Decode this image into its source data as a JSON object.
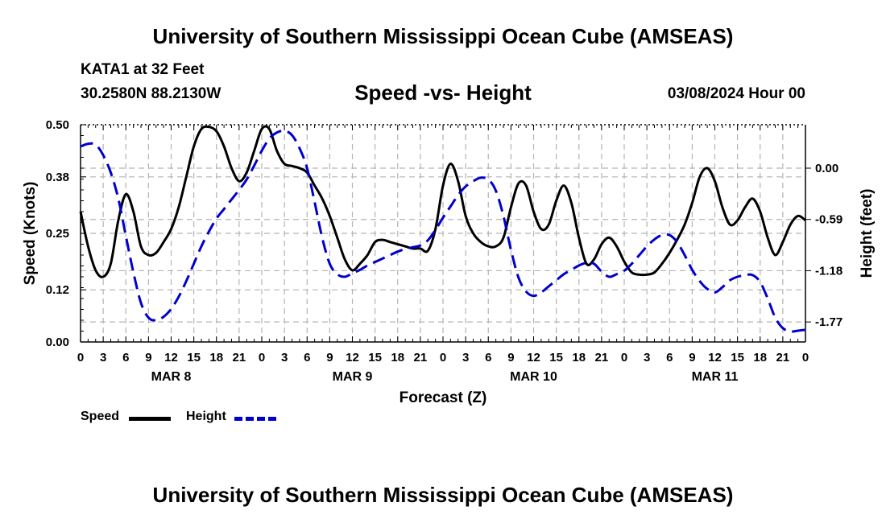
{
  "header": {
    "main_title": "University of Southern Mississippi Ocean Cube (AMSEAS)",
    "station": "KATA1 at 32 Feet",
    "coords": "30.2580N  88.2130W",
    "subtitle": "Speed -vs- Height",
    "datetime": "03/08/2024 Hour 00"
  },
  "footer": {
    "title": "University of Southern Mississippi Ocean Cube (AMSEAS)"
  },
  "legend": {
    "speed_label": "Speed",
    "height_label": "Height"
  },
  "colors": {
    "speed": "#000000",
    "height": "#0000cc",
    "grid": "#b4b4b4"
  },
  "chart_data": {
    "type": "line",
    "title": "Speed -vs- Height",
    "xlabel": "Forecast (Z)",
    "ylabel": "Speed (Knots)",
    "y2label": "Height (feet)",
    "xlim": [
      0,
      96
    ],
    "ylim": [
      0,
      0.5
    ],
    "y2lim": [
      -2.0,
      0.5
    ],
    "x_tick_step": 3,
    "x_tick_labels": [
      "0",
      "3",
      "6",
      "9",
      "12",
      "15",
      "18",
      "21",
      "0",
      "3",
      "6",
      "9",
      "12",
      "15",
      "18",
      "21",
      "0",
      "3",
      "6",
      "9",
      "12",
      "15",
      "18",
      "21",
      "0",
      "3",
      "6",
      "9",
      "12",
      "15",
      "18",
      "21",
      "0"
    ],
    "day_labels": [
      {
        "label": "MAR 8",
        "x": 12
      },
      {
        "label": "MAR 9",
        "x": 36
      },
      {
        "label": "MAR 10",
        "x": 60
      },
      {
        "label": "MAR 11",
        "x": 84
      }
    ],
    "y_ticks": [
      0.0,
      0.12,
      0.25,
      0.38,
      0.5
    ],
    "y_tick_labels": [
      "0.00",
      "0.12",
      "0.25",
      "0.38",
      "0.50"
    ],
    "y2_ticks": [
      0.0,
      -0.59,
      -1.18,
      -1.77
    ],
    "y2_tick_labels": [
      "0.00",
      "-0.59",
      "-1.18",
      "-1.77"
    ],
    "grid": true,
    "series": [
      {
        "name": "Speed",
        "axis": "left",
        "style": "solid",
        "x": [
          0,
          1,
          2,
          3,
          4,
          5,
          6,
          7,
          8,
          9,
          10,
          11,
          12,
          13,
          14,
          15,
          16,
          17,
          18,
          19,
          20,
          21,
          22,
          23,
          24,
          25,
          26,
          27,
          28,
          29,
          30,
          31,
          32,
          33,
          34,
          35,
          36,
          37,
          38,
          39,
          40,
          41,
          42,
          43,
          44,
          45,
          46,
          47,
          48,
          49,
          50,
          51,
          52,
          53,
          54,
          55,
          56,
          57,
          58,
          59,
          60,
          61,
          62,
          63,
          64,
          65,
          66,
          67,
          68,
          69,
          70,
          71,
          72,
          73,
          74,
          75,
          76,
          77,
          78,
          79,
          80,
          81,
          82,
          83,
          84,
          85,
          86,
          87,
          88,
          89,
          90,
          91,
          92,
          93,
          94,
          95,
          96
        ],
        "values": [
          0.3,
          0.22,
          0.165,
          0.15,
          0.18,
          0.28,
          0.34,
          0.3,
          0.22,
          0.2,
          0.205,
          0.23,
          0.26,
          0.31,
          0.38,
          0.45,
          0.49,
          0.495,
          0.485,
          0.45,
          0.4,
          0.37,
          0.39,
          0.44,
          0.49,
          0.49,
          0.44,
          0.41,
          0.405,
          0.4,
          0.39,
          0.36,
          0.33,
          0.29,
          0.24,
          0.19,
          0.165,
          0.18,
          0.2,
          0.23,
          0.235,
          0.23,
          0.225,
          0.22,
          0.215,
          0.215,
          0.21,
          0.26,
          0.36,
          0.41,
          0.37,
          0.29,
          0.25,
          0.23,
          0.22,
          0.22,
          0.24,
          0.31,
          0.365,
          0.36,
          0.3,
          0.26,
          0.27,
          0.325,
          0.36,
          0.32,
          0.24,
          0.18,
          0.19,
          0.225,
          0.24,
          0.22,
          0.185,
          0.16,
          0.155,
          0.155,
          0.16,
          0.18,
          0.205,
          0.235,
          0.27,
          0.32,
          0.38,
          0.4,
          0.37,
          0.31,
          0.27,
          0.28,
          0.31,
          0.33,
          0.3,
          0.24,
          0.2,
          0.23,
          0.27,
          0.29,
          0.28
        ]
      },
      {
        "name": "Height",
        "axis": "right",
        "style": "dashed",
        "x": [
          0,
          1,
          2,
          3,
          4,
          5,
          6,
          7,
          8,
          9,
          10,
          11,
          12,
          13,
          14,
          15,
          16,
          17,
          18,
          19,
          20,
          21,
          22,
          23,
          24,
          25,
          26,
          27,
          28,
          29,
          30,
          31,
          32,
          33,
          34,
          35,
          36,
          37,
          38,
          39,
          40,
          41,
          42,
          43,
          44,
          45,
          46,
          47,
          48,
          49,
          50,
          51,
          52,
          53,
          54,
          55,
          56,
          57,
          58,
          59,
          60,
          61,
          62,
          63,
          64,
          65,
          66,
          67,
          68,
          69,
          70,
          71,
          72,
          73,
          74,
          75,
          76,
          77,
          78,
          79,
          80,
          81,
          82,
          83,
          84,
          85,
          86,
          87,
          88,
          89,
          90,
          91,
          92,
          93,
          94,
          95,
          96
        ],
        "values": [
          0.25,
          0.28,
          0.27,
          0.15,
          -0.05,
          -0.35,
          -0.78,
          -1.2,
          -1.55,
          -1.72,
          -1.75,
          -1.71,
          -1.62,
          -1.48,
          -1.3,
          -1.1,
          -0.9,
          -0.73,
          -0.58,
          -0.47,
          -0.36,
          -0.25,
          -0.13,
          0.03,
          0.2,
          0.34,
          0.41,
          0.43,
          0.38,
          0.23,
          0.0,
          -0.39,
          -0.8,
          -1.1,
          -1.22,
          -1.25,
          -1.21,
          -1.17,
          -1.12,
          -1.08,
          -1.04,
          -1.0,
          -0.96,
          -0.93,
          -0.91,
          -0.89,
          -0.83,
          -0.71,
          -0.57,
          -0.44,
          -0.31,
          -0.21,
          -0.15,
          -0.11,
          -0.13,
          -0.26,
          -0.55,
          -0.94,
          -1.26,
          -1.42,
          -1.47,
          -1.43,
          -1.36,
          -1.29,
          -1.22,
          -1.17,
          -1.12,
          -1.09,
          -1.1,
          -1.19,
          -1.25,
          -1.22,
          -1.18,
          -1.1,
          -1.0,
          -0.9,
          -0.82,
          -0.77,
          -0.77,
          -0.85,
          -1.0,
          -1.17,
          -1.3,
          -1.39,
          -1.43,
          -1.37,
          -1.29,
          -1.25,
          -1.23,
          -1.23,
          -1.31,
          -1.5,
          -1.72,
          -1.84,
          -1.88,
          -1.87,
          -1.86
        ]
      }
    ]
  }
}
